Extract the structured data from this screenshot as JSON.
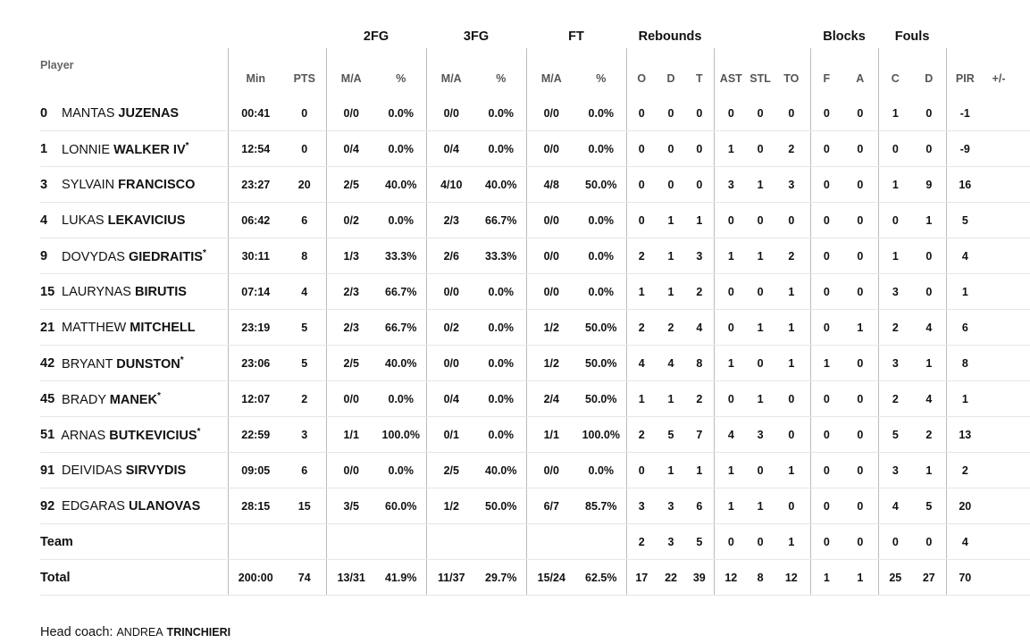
{
  "group_headers": {
    "fg2": "2FG",
    "fg3": "3FG",
    "ft": "FT",
    "reb": "Rebounds",
    "blk": "Blocks",
    "fouls": "Fouls"
  },
  "col_headers": {
    "player": "Player",
    "min": "Min",
    "pts": "PTS",
    "fg2_ma": "M/A",
    "fg2_pct": "%",
    "fg3_ma": "M/A",
    "fg3_pct": "%",
    "ft_ma": "M/A",
    "ft_pct": "%",
    "reb_o": "O",
    "reb_d": "D",
    "reb_t": "T",
    "ast": "AST",
    "stl": "STL",
    "to": "TO",
    "blk_f": "F",
    "blk_a": "A",
    "foul_c": "C",
    "foul_d": "D",
    "pir": "PIR",
    "pm": "+/-"
  },
  "players": [
    {
      "num": "0",
      "first": "Mantas",
      "last": "Juzenas",
      "starter": false,
      "min": "00:41",
      "pts": "0",
      "fg2_ma": "0/0",
      "fg2_pct": "0.0%",
      "fg3_ma": "0/0",
      "fg3_pct": "0.0%",
      "ft_ma": "0/0",
      "ft_pct": "0.0%",
      "reb_o": "0",
      "reb_d": "0",
      "reb_t": "0",
      "ast": "0",
      "stl": "0",
      "to": "0",
      "blk_f": "0",
      "blk_a": "0",
      "foul_c": "1",
      "foul_d": "0",
      "pir": "-1",
      "pm": ""
    },
    {
      "num": "1",
      "first": "Lonnie",
      "last": "Walker IV",
      "starter": true,
      "min": "12:54",
      "pts": "0",
      "fg2_ma": "0/4",
      "fg2_pct": "0.0%",
      "fg3_ma": "0/4",
      "fg3_pct": "0.0%",
      "ft_ma": "0/0",
      "ft_pct": "0.0%",
      "reb_o": "0",
      "reb_d": "0",
      "reb_t": "0",
      "ast": "1",
      "stl": "0",
      "to": "2",
      "blk_f": "0",
      "blk_a": "0",
      "foul_c": "0",
      "foul_d": "0",
      "pir": "-9",
      "pm": ""
    },
    {
      "num": "3",
      "first": "Sylvain",
      "last": "Francisco",
      "starter": false,
      "min": "23:27",
      "pts": "20",
      "fg2_ma": "2/5",
      "fg2_pct": "40.0%",
      "fg3_ma": "4/10",
      "fg3_pct": "40.0%",
      "ft_ma": "4/8",
      "ft_pct": "50.0%",
      "reb_o": "0",
      "reb_d": "0",
      "reb_t": "0",
      "ast": "3",
      "stl": "1",
      "to": "3",
      "blk_f": "0",
      "blk_a": "0",
      "foul_c": "1",
      "foul_d": "9",
      "pir": "16",
      "pm": ""
    },
    {
      "num": "4",
      "first": "Lukas",
      "last": "Lekavicius",
      "starter": false,
      "min": "06:42",
      "pts": "6",
      "fg2_ma": "0/2",
      "fg2_pct": "0.0%",
      "fg3_ma": "2/3",
      "fg3_pct": "66.7%",
      "ft_ma": "0/0",
      "ft_pct": "0.0%",
      "reb_o": "0",
      "reb_d": "1",
      "reb_t": "1",
      "ast": "0",
      "stl": "0",
      "to": "0",
      "blk_f": "0",
      "blk_a": "0",
      "foul_c": "0",
      "foul_d": "1",
      "pir": "5",
      "pm": ""
    },
    {
      "num": "9",
      "first": "Dovydas",
      "last": "Giedraitis",
      "starter": true,
      "min": "30:11",
      "pts": "8",
      "fg2_ma": "1/3",
      "fg2_pct": "33.3%",
      "fg3_ma": "2/6",
      "fg3_pct": "33.3%",
      "ft_ma": "0/0",
      "ft_pct": "0.0%",
      "reb_o": "2",
      "reb_d": "1",
      "reb_t": "3",
      "ast": "1",
      "stl": "1",
      "to": "2",
      "blk_f": "0",
      "blk_a": "0",
      "foul_c": "1",
      "foul_d": "0",
      "pir": "4",
      "pm": ""
    },
    {
      "num": "15",
      "first": "Laurynas",
      "last": "Birutis",
      "starter": false,
      "min": "07:14",
      "pts": "4",
      "fg2_ma": "2/3",
      "fg2_pct": "66.7%",
      "fg3_ma": "0/0",
      "fg3_pct": "0.0%",
      "ft_ma": "0/0",
      "ft_pct": "0.0%",
      "reb_o": "1",
      "reb_d": "1",
      "reb_t": "2",
      "ast": "0",
      "stl": "0",
      "to": "1",
      "blk_f": "0",
      "blk_a": "0",
      "foul_c": "3",
      "foul_d": "0",
      "pir": "1",
      "pm": ""
    },
    {
      "num": "21",
      "first": "Matthew",
      "last": "Mitchell",
      "starter": false,
      "min": "23:19",
      "pts": "5",
      "fg2_ma": "2/3",
      "fg2_pct": "66.7%",
      "fg3_ma": "0/2",
      "fg3_pct": "0.0%",
      "ft_ma": "1/2",
      "ft_pct": "50.0%",
      "reb_o": "2",
      "reb_d": "2",
      "reb_t": "4",
      "ast": "0",
      "stl": "1",
      "to": "1",
      "blk_f": "0",
      "blk_a": "1",
      "foul_c": "2",
      "foul_d": "4",
      "pir": "6",
      "pm": ""
    },
    {
      "num": "42",
      "first": "Bryant",
      "last": "Dunston",
      "starter": true,
      "min": "23:06",
      "pts": "5",
      "fg2_ma": "2/5",
      "fg2_pct": "40.0%",
      "fg3_ma": "0/0",
      "fg3_pct": "0.0%",
      "ft_ma": "1/2",
      "ft_pct": "50.0%",
      "reb_o": "4",
      "reb_d": "4",
      "reb_t": "8",
      "ast": "1",
      "stl": "0",
      "to": "1",
      "blk_f": "1",
      "blk_a": "0",
      "foul_c": "3",
      "foul_d": "1",
      "pir": "8",
      "pm": ""
    },
    {
      "num": "45",
      "first": "Brady",
      "last": "Manek",
      "starter": true,
      "min": "12:07",
      "pts": "2",
      "fg2_ma": "0/0",
      "fg2_pct": "0.0%",
      "fg3_ma": "0/4",
      "fg3_pct": "0.0%",
      "ft_ma": "2/4",
      "ft_pct": "50.0%",
      "reb_o": "1",
      "reb_d": "1",
      "reb_t": "2",
      "ast": "0",
      "stl": "1",
      "to": "0",
      "blk_f": "0",
      "blk_a": "0",
      "foul_c": "2",
      "foul_d": "4",
      "pir": "1",
      "pm": ""
    },
    {
      "num": "51",
      "first": "Arnas",
      "last": "Butkevicius",
      "starter": true,
      "min": "22:59",
      "pts": "3",
      "fg2_ma": "1/1",
      "fg2_pct": "100.0%",
      "fg3_ma": "0/1",
      "fg3_pct": "0.0%",
      "ft_ma": "1/1",
      "ft_pct": "100.0%",
      "reb_o": "2",
      "reb_d": "5",
      "reb_t": "7",
      "ast": "4",
      "stl": "3",
      "to": "0",
      "blk_f": "0",
      "blk_a": "0",
      "foul_c": "5",
      "foul_d": "2",
      "pir": "13",
      "pm": ""
    },
    {
      "num": "91",
      "first": "Deividas",
      "last": "Sirvydis",
      "starter": false,
      "min": "09:05",
      "pts": "6",
      "fg2_ma": "0/0",
      "fg2_pct": "0.0%",
      "fg3_ma": "2/5",
      "fg3_pct": "40.0%",
      "ft_ma": "0/0",
      "ft_pct": "0.0%",
      "reb_o": "0",
      "reb_d": "1",
      "reb_t": "1",
      "ast": "1",
      "stl": "0",
      "to": "1",
      "blk_f": "0",
      "blk_a": "0",
      "foul_c": "3",
      "foul_d": "1",
      "pir": "2",
      "pm": ""
    },
    {
      "num": "92",
      "first": "Edgaras",
      "last": "Ulanovas",
      "starter": false,
      "min": "28:15",
      "pts": "15",
      "fg2_ma": "3/5",
      "fg2_pct": "60.0%",
      "fg3_ma": "1/2",
      "fg3_pct": "50.0%",
      "ft_ma": "6/7",
      "ft_pct": "85.7%",
      "reb_o": "3",
      "reb_d": "3",
      "reb_t": "6",
      "ast": "1",
      "stl": "1",
      "to": "0",
      "blk_f": "0",
      "blk_a": "0",
      "foul_c": "4",
      "foul_d": "5",
      "pir": "20",
      "pm": ""
    }
  ],
  "team_row": {
    "label": "Team",
    "min": "",
    "pts": "",
    "fg2_ma": "",
    "fg2_pct": "",
    "fg3_ma": "",
    "fg3_pct": "",
    "ft_ma": "",
    "ft_pct": "",
    "reb_o": "2",
    "reb_d": "3",
    "reb_t": "5",
    "ast": "0",
    "stl": "0",
    "to": "1",
    "blk_f": "0",
    "blk_a": "0",
    "foul_c": "0",
    "foul_d": "0",
    "pir": "4",
    "pm": ""
  },
  "total_row": {
    "label": "Total",
    "min": "200:00",
    "pts": "74",
    "fg2_ma": "13/31",
    "fg2_pct": "41.9%",
    "fg3_ma": "11/37",
    "fg3_pct": "29.7%",
    "ft_ma": "15/24",
    "ft_pct": "62.5%",
    "reb_o": "17",
    "reb_d": "22",
    "reb_t": "39",
    "ast": "12",
    "stl": "8",
    "to": "12",
    "blk_f": "1",
    "blk_a": "1",
    "foul_c": "25",
    "foul_d": "27",
    "pir": "70",
    "pm": ""
  },
  "coach": {
    "label": "Head coach:",
    "first": "Andrea",
    "last": "Trinchieri"
  },
  "starter_mark": "*"
}
